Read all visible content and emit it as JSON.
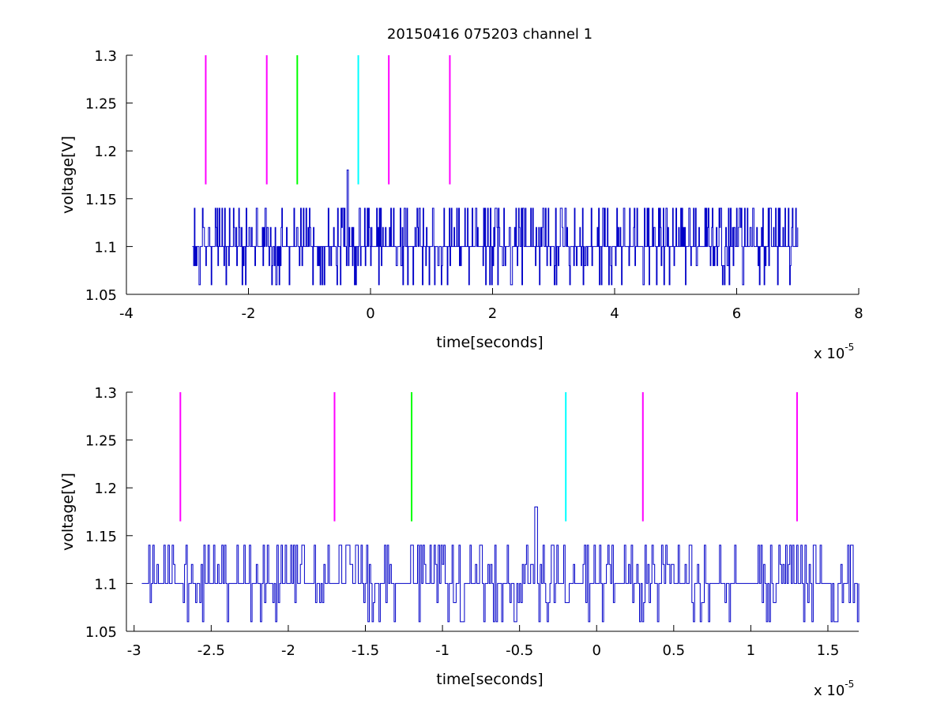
{
  "title": "20150416 075203 channel 1",
  "colors": {
    "trace": "#0000c8",
    "magenta": "#ff00ff",
    "green": "#00ff00",
    "cyan": "#00ffff",
    "axis": "#000000"
  },
  "chart_data": [
    {
      "type": "line",
      "title": "20150416 075203 channel 1",
      "xlabel": "time[seconds]",
      "ylabel": "voltage[V]",
      "x_multiplier": "x 10",
      "x_multiplier_exp": "-5",
      "xlim": [
        -4,
        8
      ],
      "ylim": [
        1.05,
        1.3
      ],
      "xticks": [
        -4,
        -2,
        0,
        2,
        4,
        6,
        8
      ],
      "xtick_labels": [
        "-4",
        "-2",
        "0",
        "2",
        "4",
        "6",
        "8"
      ],
      "yticks": [
        1.05,
        1.1,
        1.15,
        1.2,
        1.25,
        1.3
      ],
      "ytick_labels": [
        "1.05",
        "1.1",
        "1.15",
        "1.2",
        "1.25",
        "1.3"
      ],
      "box": false,
      "trace": {
        "x_range": [
          -2.92,
          7.0
        ],
        "baseline": 1.1,
        "levels": [
          1.06,
          1.08,
          1.1,
          1.12,
          1.14
        ],
        "spike": {
          "x": -0.38,
          "y": 1.18
        },
        "seed": 7,
        "approx_points": 900
      },
      "markers": [
        {
          "x": -2.7,
          "y_range": [
            1.165,
            1.3
          ],
          "color": "magenta"
        },
        {
          "x": -1.7,
          "y_range": [
            1.165,
            1.3
          ],
          "color": "magenta"
        },
        {
          "x": -1.2,
          "y_range": [
            1.165,
            1.3
          ],
          "color": "green"
        },
        {
          "x": -0.2,
          "y_range": [
            1.165,
            1.3
          ],
          "color": "cyan"
        },
        {
          "x": 0.3,
          "y_range": [
            1.165,
            1.3
          ],
          "color": "magenta"
        },
        {
          "x": 1.3,
          "y_range": [
            1.165,
            1.3
          ],
          "color": "magenta"
        }
      ]
    },
    {
      "type": "line",
      "xlabel": "time[seconds]",
      "ylabel": "voltage[V]",
      "x_multiplier": "x 10",
      "x_multiplier_exp": "-5",
      "xlim": [
        -3.05,
        1.7
      ],
      "ylim": [
        1.05,
        1.3
      ],
      "xticks": [
        -3,
        -2.5,
        -2,
        -1.5,
        -1,
        -0.5,
        0,
        0.5,
        1,
        1.5
      ],
      "xtick_labels": [
        "-3",
        "-2.5",
        "-2",
        "-1.5",
        "-1",
        "-0.5",
        "0",
        "0.5",
        "1",
        "1.5"
      ],
      "yticks": [
        1.05,
        1.1,
        1.15,
        1.2,
        1.25,
        1.3
      ],
      "ytick_labels": [
        "1.05",
        "1.1",
        "1.15",
        "1.2",
        "1.25",
        "1.3"
      ],
      "box": false,
      "trace": {
        "x_range": [
          -2.95,
          1.7
        ],
        "baseline": 1.1,
        "levels": [
          1.06,
          1.08,
          1.1,
          1.12,
          1.14
        ],
        "spike": {
          "x": -0.4,
          "y": 1.18
        },
        "seed": 11,
        "approx_points": 520
      },
      "markers": [
        {
          "x": -2.7,
          "y_range": [
            1.165,
            1.3
          ],
          "color": "magenta"
        },
        {
          "x": -1.7,
          "y_range": [
            1.165,
            1.3
          ],
          "color": "magenta"
        },
        {
          "x": -1.2,
          "y_range": [
            1.165,
            1.3
          ],
          "color": "green"
        },
        {
          "x": -0.2,
          "y_range": [
            1.165,
            1.3
          ],
          "color": "cyan"
        },
        {
          "x": 0.3,
          "y_range": [
            1.165,
            1.3
          ],
          "color": "magenta"
        },
        {
          "x": 1.3,
          "y_range": [
            1.165,
            1.3
          ],
          "color": "magenta"
        }
      ]
    }
  ]
}
